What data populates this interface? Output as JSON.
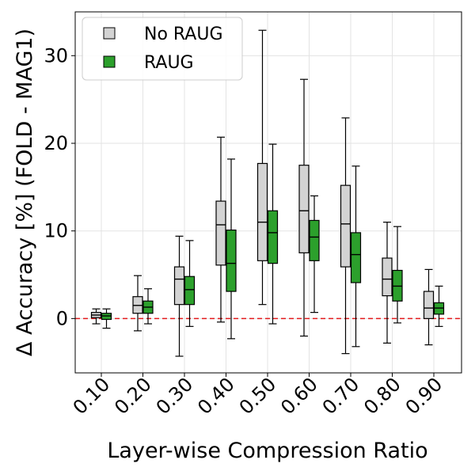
{
  "chart_data": {
    "type": "box",
    "categories": [
      "0.10",
      "0.20",
      "0.30",
      "0.40",
      "0.50",
      "0.60",
      "0.70",
      "0.80",
      "0.90"
    ],
    "xlabel": "Layer-wise Compression Ratio",
    "ylabel": "Δ Accuracy [%] (FOLD - MAG1)",
    "ylim": [
      -6.2,
      35
    ],
    "yticks": [
      0,
      10,
      20,
      30
    ],
    "grid": true,
    "legend_position": "top-left",
    "reference_line": {
      "y": 0,
      "color": "#e31a1c",
      "style": "dashed"
    },
    "series": [
      {
        "name": "No RAUG",
        "color": "#d3d3d3",
        "boxes": [
          {
            "whisker_low": -0.6,
            "q1": 0.1,
            "median": 0.4,
            "q3": 0.7,
            "whisker_high": 1.1
          },
          {
            "whisker_low": -1.4,
            "q1": 0.6,
            "median": 1.5,
            "q3": 2.5,
            "whisker_high": 4.9
          },
          {
            "whisker_low": -4.3,
            "q1": 1.6,
            "median": 4.5,
            "q3": 5.9,
            "whisker_high": 9.4
          },
          {
            "whisker_low": -0.4,
            "q1": 6.1,
            "median": 10.7,
            "q3": 13.4,
            "whisker_high": 20.7
          },
          {
            "whisker_low": 1.6,
            "q1": 6.6,
            "median": 11.0,
            "q3": 17.7,
            "whisker_high": 32.9
          },
          {
            "whisker_low": -2.0,
            "q1": 7.5,
            "median": 12.3,
            "q3": 17.5,
            "whisker_high": 27.3
          },
          {
            "whisker_low": -4.0,
            "q1": 5.9,
            "median": 10.8,
            "q3": 15.2,
            "whisker_high": 22.9
          },
          {
            "whisker_low": -2.8,
            "q1": 2.6,
            "median": 4.5,
            "q3": 6.9,
            "whisker_high": 11.0
          },
          {
            "whisker_low": -3.0,
            "q1": 0.0,
            "median": 1.2,
            "q3": 3.1,
            "whisker_high": 5.6
          }
        ]
      },
      {
        "name": "RAUG",
        "color": "#2ca02c",
        "boxes": [
          {
            "whisker_low": -1.1,
            "q1": -0.1,
            "median": 0.3,
            "q3": 0.6,
            "whisker_high": 1.1
          },
          {
            "whisker_low": -0.6,
            "q1": 0.6,
            "median": 1.3,
            "q3": 2.0,
            "whisker_high": 3.4
          },
          {
            "whisker_low": -0.9,
            "q1": 1.6,
            "median": 3.3,
            "q3": 4.8,
            "whisker_high": 8.9
          },
          {
            "whisker_low": -2.3,
            "q1": 3.1,
            "median": 6.3,
            "q3": 10.1,
            "whisker_high": 18.2
          },
          {
            "whisker_low": -0.6,
            "q1": 6.3,
            "median": 9.8,
            "q3": 12.3,
            "whisker_high": 19.9
          },
          {
            "whisker_low": 0.7,
            "q1": 6.6,
            "median": 9.3,
            "q3": 11.2,
            "whisker_high": 14.0
          },
          {
            "whisker_low": -3.2,
            "q1": 4.1,
            "median": 7.3,
            "q3": 9.8,
            "whisker_high": 17.4
          },
          {
            "whisker_low": -0.5,
            "q1": 2.0,
            "median": 3.7,
            "q3": 5.5,
            "whisker_high": 10.5
          },
          {
            "whisker_low": -0.9,
            "q1": 0.5,
            "median": 1.2,
            "q3": 1.8,
            "whisker_high": 3.7
          }
        ]
      }
    ]
  }
}
